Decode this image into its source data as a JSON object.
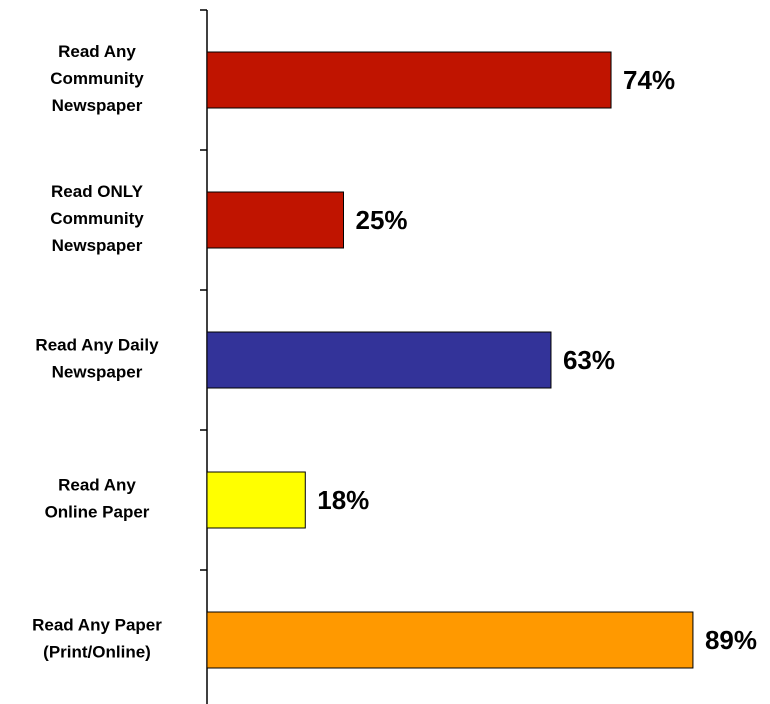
{
  "chart_data": {
    "type": "bar",
    "orientation": "horizontal",
    "categories": [
      "Read Any\nCommunity\nNewspaper",
      "Read ONLY\nCommunity\nNewspaper",
      "Read Any Daily\nNewspaper",
      "Read Any\nOnline Paper",
      "Read Any Paper\n(Print/Online)"
    ],
    "values": [
      74,
      25,
      63,
      18,
      89
    ],
    "value_labels": [
      "74%",
      "25%",
      "63%",
      "18%",
      "89%"
    ],
    "colors": [
      "#c01400",
      "#c01400",
      "#333399",
      "#ffff00",
      "#ff9900"
    ],
    "xlim": [
      0,
      100
    ]
  }
}
